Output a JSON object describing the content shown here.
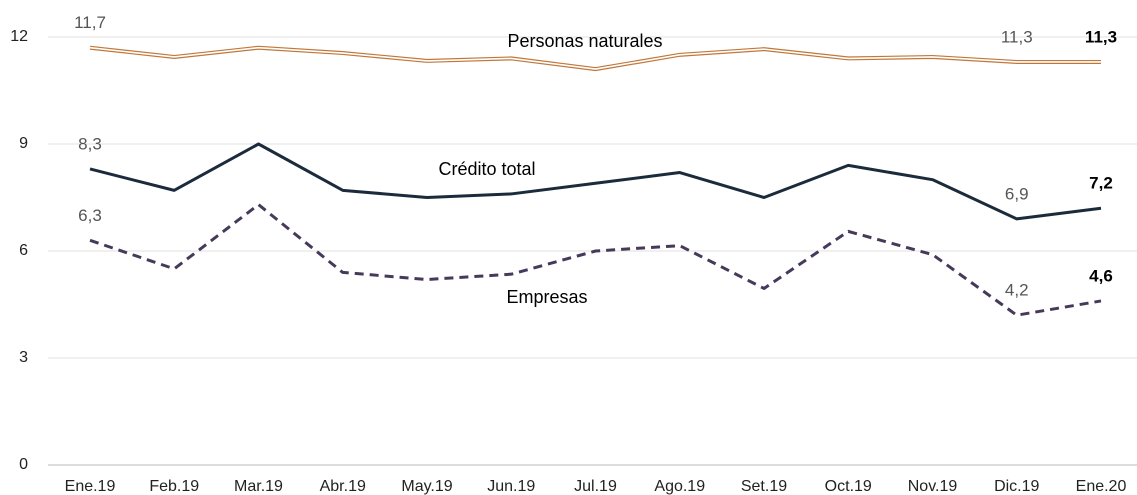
{
  "chart_data": {
    "type": "line",
    "categories": [
      "Ene.19",
      "Feb.19",
      "Mar.19",
      "Abr.19",
      "May.19",
      "Jun.19",
      "Jul.19",
      "Ago.19",
      "Set.19",
      "Oct.19",
      "Nov.19",
      "Dic.19",
      "Ene.20"
    ],
    "series": [
      {
        "name": "Personas naturales",
        "color": "#c0783a",
        "style": "double",
        "values": [
          11.7,
          11.44,
          11.7,
          11.55,
          11.33,
          11.4,
          11.1,
          11.5,
          11.66,
          11.4,
          11.44,
          11.3,
          11.3
        ],
        "value_labels": [
          "11,7",
          null,
          null,
          null,
          null,
          null,
          null,
          null,
          null,
          null,
          null,
          "11,3",
          "11,3"
        ]
      },
      {
        "name": "Crédito total",
        "color": "#1c2b3c",
        "style": "solid",
        "values": [
          8.3,
          7.7,
          9.0,
          7.7,
          7.5,
          7.6,
          7.9,
          8.2,
          7.5,
          8.4,
          8.0,
          6.9,
          7.2
        ],
        "value_labels": [
          "8,3",
          null,
          null,
          null,
          null,
          null,
          null,
          null,
          null,
          null,
          null,
          "6,9",
          "7,2"
        ]
      },
      {
        "name": "Empresas",
        "color": "#463a5a",
        "style": "dashed",
        "values": [
          6.3,
          5.5,
          7.3,
          5.4,
          5.2,
          5.35,
          6.0,
          6.15,
          4.95,
          6.55,
          5.9,
          4.2,
          4.6
        ],
        "value_labels": [
          "6,3",
          null,
          null,
          null,
          null,
          null,
          null,
          null,
          null,
          null,
          null,
          "4,2",
          "4,6"
        ]
      }
    ],
    "ylim": [
      0,
      12
    ],
    "yticks": [
      0,
      3,
      6,
      9,
      12
    ],
    "grid": true
  }
}
